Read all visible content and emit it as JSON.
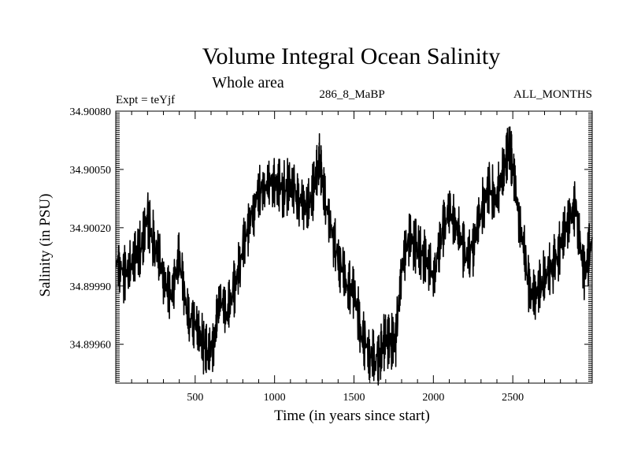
{
  "chart_data": {
    "type": "line",
    "title": "Volume Integral Ocean Salinity",
    "subtitle": "Whole area",
    "annotations": {
      "left": "Expt = teYjf",
      "center": "286_8_MaBP",
      "right": "ALL_MONTHS"
    },
    "xlabel": "Time (in years since start)",
    "ylabel": "Salinity (in PSU)",
    "xlim": [
      0,
      3000
    ],
    "ylim": [
      34.8994,
      34.9008
    ],
    "xticks": [
      500,
      1000,
      1500,
      2000,
      2500
    ],
    "xtick_labels": [
      "500",
      "1000",
      "1500",
      "2000",
      "2500"
    ],
    "yticks": [
      34.8996,
      34.8999,
      34.9002,
      34.9005,
      34.9008
    ],
    "ytick_labels": [
      "34.89960",
      "34.89990",
      "34.90020",
      "34.90050",
      "34.90080"
    ],
    "grid": false,
    "series": [
      {
        "name": "salinity",
        "x": [
          0,
          50,
          100,
          150,
          200,
          250,
          300,
          350,
          400,
          450,
          500,
          550,
          580,
          620,
          650,
          700,
          750,
          800,
          850,
          900,
          950,
          1000,
          1050,
          1100,
          1150,
          1200,
          1250,
          1280,
          1300,
          1350,
          1400,
          1450,
          1500,
          1550,
          1600,
          1650,
          1680,
          1720,
          1760,
          1800,
          1850,
          1900,
          1950,
          2000,
          2050,
          2100,
          2150,
          2200,
          2250,
          2300,
          2350,
          2400,
          2450,
          2480,
          2500,
          2550,
          2600,
          2650,
          2700,
          2750,
          2800,
          2850,
          2900,
          2950,
          3000
        ],
        "y": [
          34.90005,
          34.89995,
          34.90002,
          34.90008,
          34.90025,
          34.9001,
          34.89995,
          34.89985,
          34.90005,
          34.89975,
          34.8997,
          34.8996,
          34.89955,
          34.8996,
          34.89985,
          34.89975,
          34.8999,
          34.9001,
          34.90025,
          34.90038,
          34.90042,
          34.90043,
          34.9004,
          34.90041,
          34.90035,
          34.9003,
          34.9004,
          34.90055,
          34.90045,
          34.9002,
          34.90005,
          34.8999,
          34.89988,
          34.89965,
          34.89955,
          34.8995,
          34.8996,
          34.89962,
          34.8996,
          34.9,
          34.90015,
          34.90008,
          34.90005,
          34.89993,
          34.90015,
          34.9003,
          34.9002,
          34.90005,
          34.9001,
          34.9003,
          34.9004,
          34.90035,
          34.90055,
          34.9006,
          34.9005,
          34.9002,
          34.8999,
          34.89985,
          34.89995,
          34.9,
          34.9001,
          34.90025,
          34.9003,
          34.89995,
          34.90015
        ]
      }
    ]
  }
}
